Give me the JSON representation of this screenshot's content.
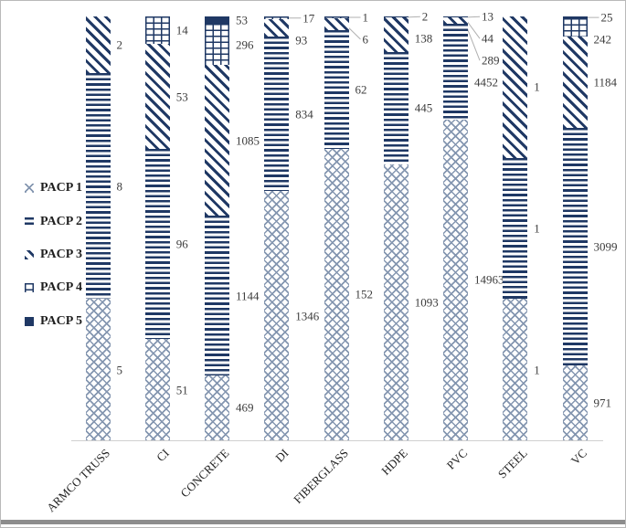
{
  "legend": {
    "items": [
      {
        "label": "PACP 1",
        "icon": "crosshatch-swatch-icon",
        "pattern": "crosshatch"
      },
      {
        "label": "PACP 2",
        "icon": "horizontal-stripes-swatch-icon",
        "pattern": "horizontal-stripes"
      },
      {
        "label": "PACP 3",
        "icon": "diagonal-stripes-swatch-icon",
        "pattern": "diagonal-stripes"
      },
      {
        "label": "PACP 4",
        "icon": "brick-swatch-icon",
        "pattern": "brick"
      },
      {
        "label": "PACP 5",
        "icon": "solid-swatch-icon",
        "pattern": "solid"
      }
    ]
  },
  "chart_data": {
    "type": "bar",
    "subtype": "stacked-100-percent-column",
    "orientation": "vertical",
    "title": "",
    "xlabel": "",
    "ylabel": "",
    "grid": false,
    "legend_position": "left",
    "data_labels_shown": true,
    "categories": [
      "ARMCO TRUSS",
      "CI",
      "CONCRETE",
      "DI",
      "FIBERGLASS",
      "HDPE",
      "PVC",
      "STEEL",
      "VC"
    ],
    "series": [
      {
        "name": "PACP 1",
        "pattern": "crosshatch",
        "values": [
          5,
          51,
          469,
          1346,
          152,
          1093,
          14963,
          1,
          971
        ]
      },
      {
        "name": "PACP 2",
        "pattern": "horizontal-stripes",
        "values": [
          8,
          96,
          1144,
          834,
          62,
          445,
          4452,
          1,
          3099
        ]
      },
      {
        "name": "PACP 3",
        "pattern": "diagonal-stripes",
        "values": [
          2,
          53,
          1085,
          93,
          6,
          138,
          289,
          1,
          1184
        ]
      },
      {
        "name": "PACP 4",
        "pattern": "brick",
        "values": [
          0,
          14,
          296,
          17,
          1,
          2,
          44,
          0,
          242
        ]
      },
      {
        "name": "PACP 5",
        "pattern": "solid",
        "values": [
          0,
          0,
          53,
          0,
          0,
          0,
          13,
          0,
          25
        ]
      }
    ],
    "colors": {
      "navy": "#1f3864",
      "crosshatch": "#8496b0",
      "leader_line": "#b0b0b0",
      "axis_line": "#d0d0d0",
      "label_text": "#3c3c3c"
    }
  }
}
